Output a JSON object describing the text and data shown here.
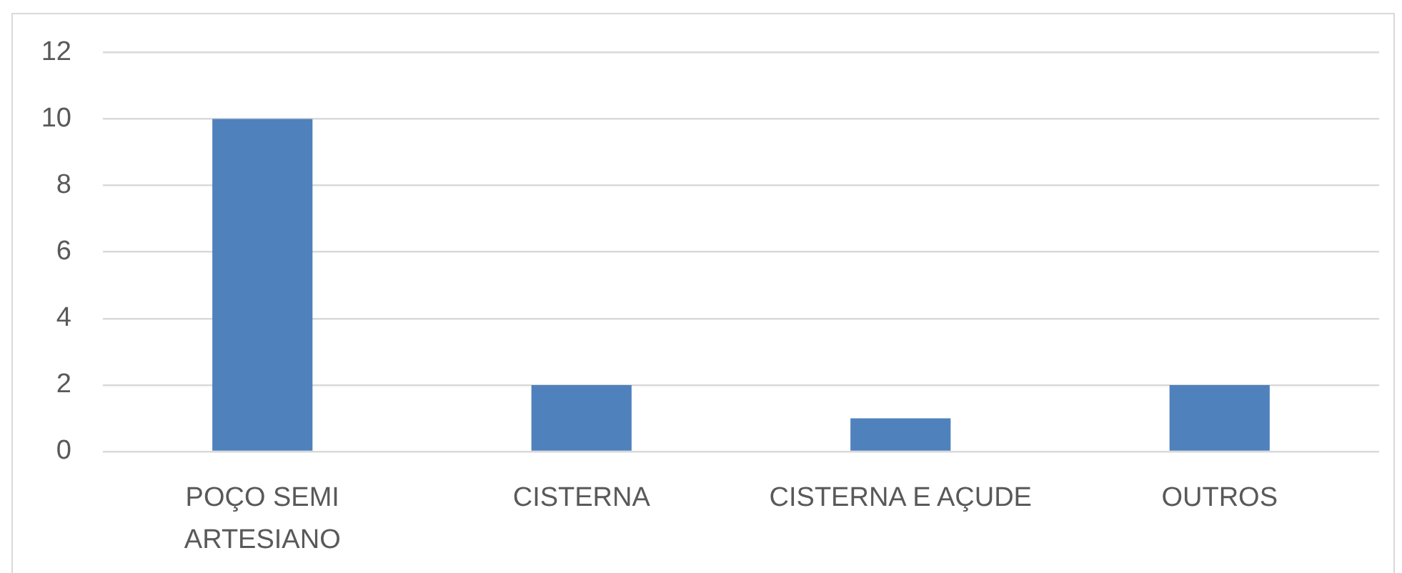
{
  "chart_data": {
    "type": "bar",
    "categories": [
      "POÇO SEMI ARTESIANO",
      "CISTERNA",
      "CISTERNA E AÇUDE",
      "OUTROS"
    ],
    "values": [
      10,
      2,
      1,
      2
    ],
    "color": "#4f81bd",
    "ylim": [
      0,
      12
    ],
    "yticks": [
      0,
      2,
      4,
      6,
      8,
      10,
      12
    ],
    "grid": "y"
  }
}
